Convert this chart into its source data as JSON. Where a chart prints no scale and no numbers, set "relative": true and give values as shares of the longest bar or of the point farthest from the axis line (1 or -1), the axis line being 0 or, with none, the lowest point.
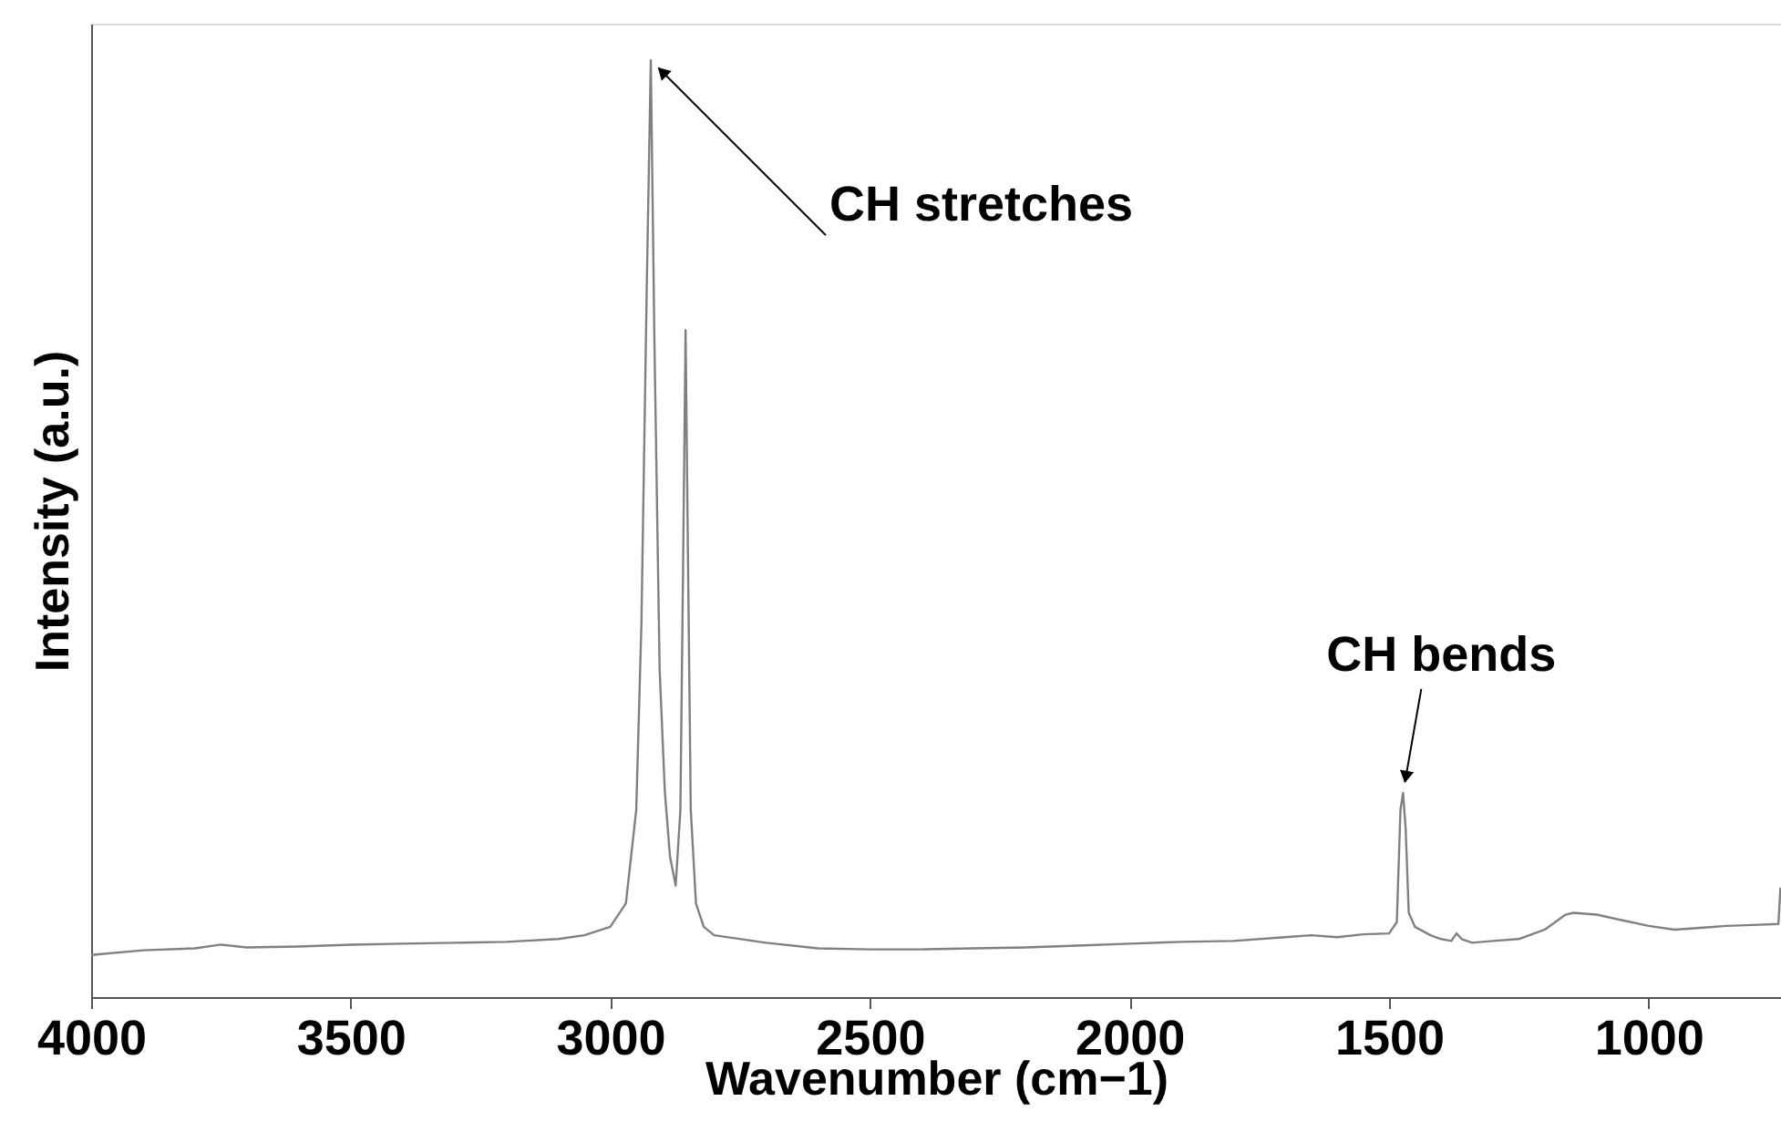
{
  "chart_data": {
    "type": "line",
    "relative": true,
    "xlabel": "Wavenumber (cm−1)",
    "ylabel": "Intensity (a.u.)",
    "xlim": [
      4000,
      745
    ],
    "xticks": [
      4000,
      3500,
      3000,
      2500,
      2000,
      1500,
      1000
    ],
    "grid": false,
    "marker": "none",
    "line_style": "solid",
    "tick_labels": "x",
    "annotations": [
      {
        "text": "CH stretches",
        "x": 2922,
        "y": 1.0
      },
      {
        "text": "CH bends",
        "x": 1473,
        "y": 0.218
      }
    ],
    "series": [
      {
        "color": "#808080",
        "x": [
          4000,
          3900,
          3800,
          3750,
          3700,
          3600,
          3500,
          3400,
          3300,
          3200,
          3100,
          3050,
          3000,
          2970,
          2950,
          2940,
          2930,
          2922,
          2915,
          2905,
          2895,
          2885,
          2874,
          2865,
          2860,
          2855,
          2850,
          2845,
          2835,
          2820,
          2800,
          2700,
          2600,
          2500,
          2400,
          2300,
          2200,
          2100,
          2000,
          1900,
          1800,
          1700,
          1650,
          1600,
          1550,
          1500,
          1485,
          1478,
          1473,
          1468,
          1462,
          1450,
          1420,
          1400,
          1380,
          1370,
          1360,
          1340,
          1300,
          1250,
          1200,
          1160,
          1145,
          1100,
          1050,
          1000,
          950,
          900,
          850,
          800,
          750,
          746
        ],
        "values": [
          0.045,
          0.05,
          0.052,
          0.056,
          0.053,
          0.054,
          0.056,
          0.057,
          0.058,
          0.059,
          0.062,
          0.066,
          0.075,
          0.1,
          0.2,
          0.4,
          0.75,
          1.0,
          0.7,
          0.35,
          0.22,
          0.15,
          0.119,
          0.2,
          0.45,
          0.712,
          0.45,
          0.2,
          0.1,
          0.075,
          0.066,
          0.058,
          0.052,
          0.051,
          0.051,
          0.052,
          0.053,
          0.055,
          0.057,
          0.059,
          0.06,
          0.064,
          0.066,
          0.064,
          0.067,
          0.068,
          0.08,
          0.2,
          0.218,
          0.18,
          0.09,
          0.075,
          0.066,
          0.062,
          0.06,
          0.068,
          0.062,
          0.058,
          0.06,
          0.062,
          0.072,
          0.088,
          0.09,
          0.088,
          0.082,
          0.076,
          0.072,
          0.074,
          0.076,
          0.077,
          0.078,
          0.117
        ]
      }
    ]
  }
}
